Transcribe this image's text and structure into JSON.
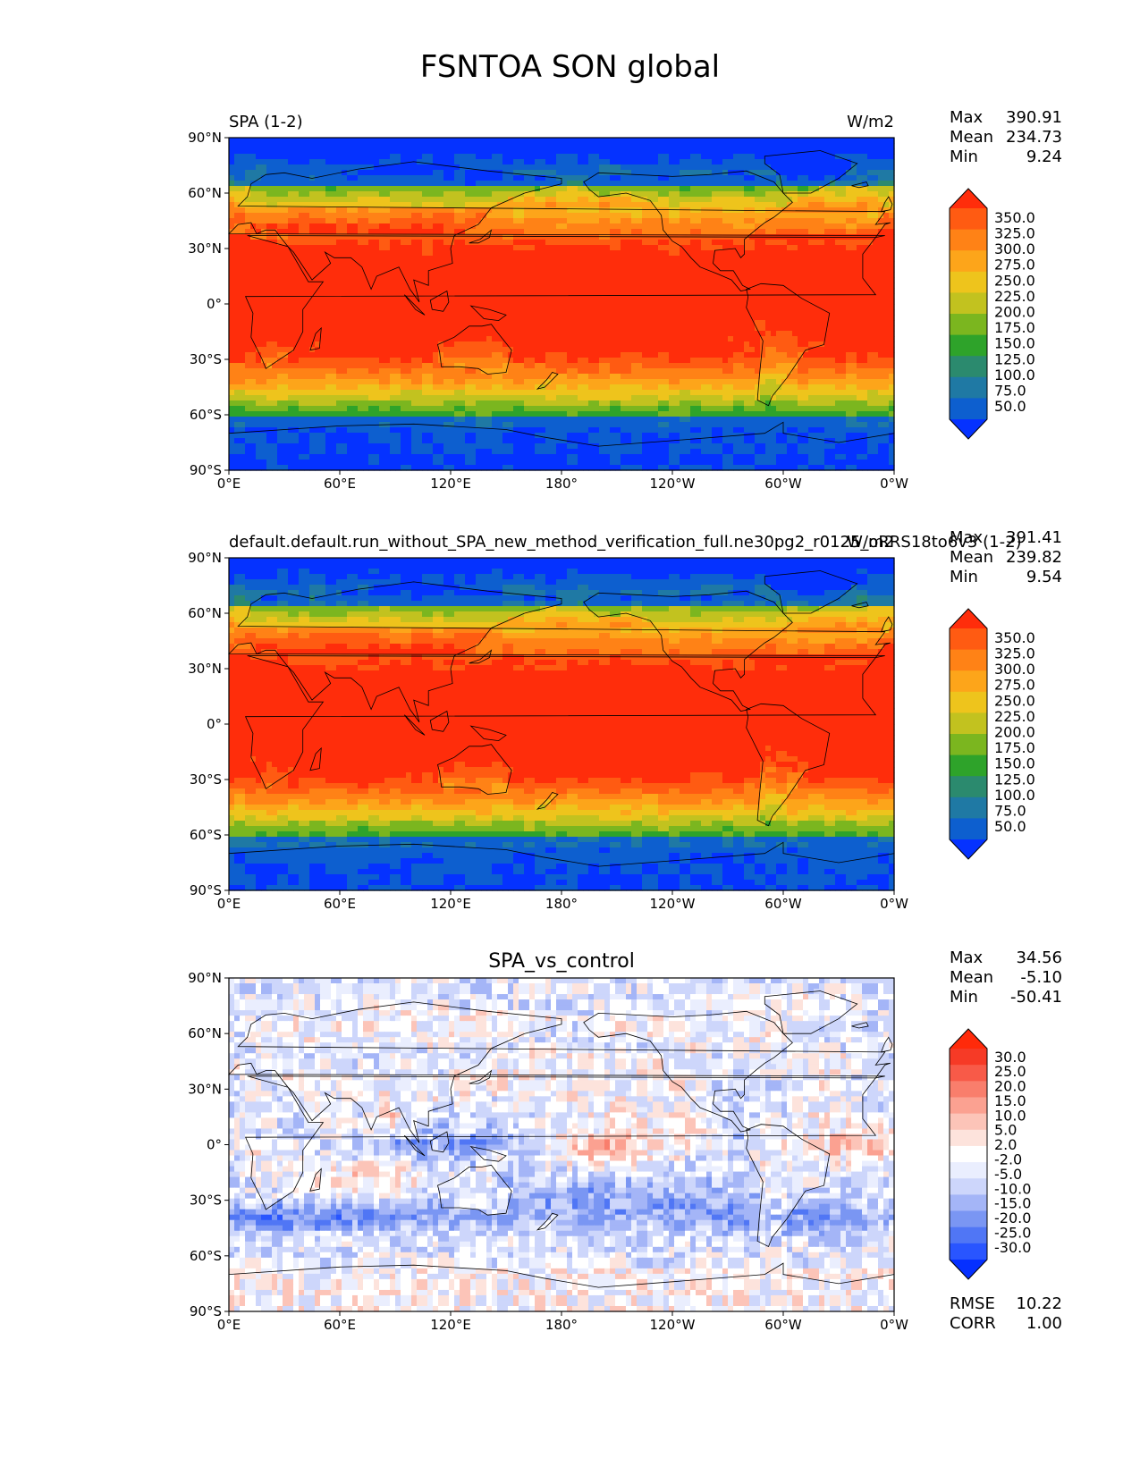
{
  "figure": {
    "title": "FSNTOA SON global"
  },
  "palettes": {
    "abs": [
      "#0532ff",
      "#0d5fcf",
      "#1f79a4",
      "#2b8a6e",
      "#2ea32a",
      "#7bb61f",
      "#c2c21f",
      "#eec41c",
      "#fda51a",
      "#ff8216",
      "#ff5b12",
      "#ff2d0b"
    ],
    "diff": [
      "#0530ff",
      "#2955ff",
      "#5076f5",
      "#7a96f3",
      "#a4b5f7",
      "#cdd6fb",
      "#eaeefe",
      "#ffffff",
      "#fde3dc",
      "#fcc4b8",
      "#fba191",
      "#f97e6c",
      "#f85a48",
      "#f63a26",
      "#ff2a0a"
    ]
  },
  "chart_data": [
    {
      "type": "heatmap",
      "title": "",
      "left_label": "SPA (1-2)",
      "units": "W/m2",
      "x_ticks": [
        "0°E",
        "60°E",
        "120°E",
        "180°",
        "120°W",
        "60°W",
        "0°W"
      ],
      "y_ticks": [
        "90°N",
        "60°N",
        "30°N",
        "0°",
        "30°S",
        "60°S",
        "90°S"
      ],
      "stats": [
        {
          "label": "Max",
          "value": "390.91"
        },
        {
          "label": "Mean",
          "value": "234.73"
        },
        {
          "label": "Min",
          "value": "9.24"
        }
      ],
      "colorbar": {
        "palette": "abs",
        "levels": [
          "350.0",
          "325.0",
          "300.0",
          "275.0",
          "250.0",
          "225.0",
          "200.0",
          "175.0",
          "150.0",
          "125.0",
          "100.0",
          "75.0",
          "50.0"
        ]
      },
      "field": "absolute",
      "variant": 0
    },
    {
      "type": "heatmap",
      "title": "",
      "left_label": "default.default.run_without_SPA_new_method_verification_full.ne30pg2_r0125_oRRS18to6v3 (1-2)",
      "units": "W/m2",
      "x_ticks": [
        "0°E",
        "60°E",
        "120°E",
        "180°",
        "120°W",
        "60°W",
        "0°W"
      ],
      "y_ticks": [
        "90°N",
        "60°N",
        "30°N",
        "0°",
        "30°S",
        "60°S",
        "90°S"
      ],
      "stats": [
        {
          "label": "Max",
          "value": "391.41"
        },
        {
          "label": "Mean",
          "value": "239.82"
        },
        {
          "label": "Min",
          "value": "9.54"
        }
      ],
      "colorbar": {
        "palette": "abs",
        "levels": [
          "350.0",
          "325.0",
          "300.0",
          "275.0",
          "250.0",
          "225.0",
          "200.0",
          "175.0",
          "150.0",
          "125.0",
          "100.0",
          "75.0",
          "50.0"
        ]
      },
      "field": "absolute",
      "variant": 1
    },
    {
      "type": "heatmap",
      "title": "SPA_vs_control",
      "left_label": "",
      "units": "",
      "x_ticks": [
        "0°E",
        "60°E",
        "120°E",
        "180°",
        "120°W",
        "60°W",
        "0°W"
      ],
      "y_ticks": [
        "90°N",
        "60°N",
        "30°N",
        "0°",
        "30°S",
        "60°S",
        "90°S"
      ],
      "stats": [
        {
          "label": "Max",
          "value": "34.56"
        },
        {
          "label": "Mean",
          "value": "-5.10"
        },
        {
          "label": "Min",
          "value": "-50.41"
        }
      ],
      "colorbar": {
        "palette": "diff",
        "levels": [
          "30.0",
          "25.0",
          "20.0",
          "15.0",
          "10.0",
          "5.0",
          "2.0",
          "-2.0",
          "-5.0",
          "-10.0",
          "-15.0",
          "-20.0",
          "-25.0",
          "-30.0"
        ]
      },
      "extra_stats": [
        {
          "label": "RMSE",
          "value": "10.22"
        },
        {
          "label": "CORR",
          "value": "1.00"
        }
      ],
      "field": "difference",
      "variant": 2
    }
  ]
}
